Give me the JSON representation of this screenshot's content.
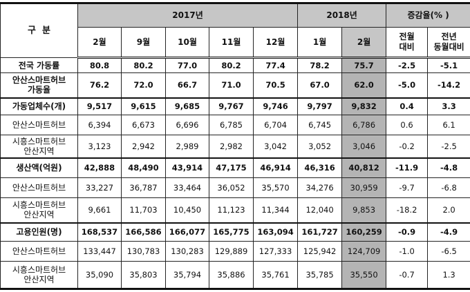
{
  "header": {
    "category": "구  분",
    "year2017": "2017년",
    "year2018": "2018년",
    "change": "증감율(% )",
    "months": [
      "2월",
      "9월",
      "10월",
      "11월",
      "12월",
      "1월",
      "2월"
    ],
    "change_cols": [
      [
        "전월",
        "대비"
      ],
      [
        "전년",
        "동월대비"
      ]
    ]
  },
  "rows": [
    {
      "label": [
        "전국 가동률"
      ],
      "values": [
        "80.8",
        "80.2",
        "77.0",
        "80.2",
        "77.4",
        "78.2",
        "75.7",
        "-2.5",
        "-5.1"
      ]
    },
    {
      "label": [
        "안산스마트허브",
        "가동율"
      ],
      "values": [
        "76.2",
        "72.0",
        "66.7",
        "71.0",
        "70.5",
        "67.0",
        "62.0",
        "-5.0",
        "-14.2"
      ]
    },
    {
      "label": [
        "가동업체수(개)"
      ],
      "values": [
        "9,517",
        "9,615",
        "9,685",
        "9,767",
        "9,746",
        "9,797",
        "9,832",
        "0.4",
        "3.3"
      ]
    },
    {
      "label": [
        "안산스마트허브"
      ],
      "values": [
        "6,394",
        "6,673",
        "6,696",
        "6,785",
        "6,704",
        "6,745",
        "6,786",
        "0.6",
        "6.1"
      ]
    },
    {
      "label": [
        "시흥스마트허브",
        "안산지역"
      ],
      "values": [
        "3,123",
        "2,942",
        "2,989",
        "2,982",
        "3,042",
        "3,052",
        "3,046",
        "-0.2",
        "-2.5"
      ]
    },
    {
      "label": [
        "생산액(억원)"
      ],
      "values": [
        "42,888",
        "48,490",
        "43,914",
        "47,175",
        "46,914",
        "46,316",
        "40,812",
        "-11.9",
        "-4.8"
      ]
    },
    {
      "label": [
        "안산스마트허브"
      ],
      "values": [
        "33,227",
        "36,787",
        "33,464",
        "36,052",
        "35,570",
        "34,276",
        "30,959",
        "-9.7",
        "-6.8"
      ]
    },
    {
      "label": [
        "시흥스마트허브",
        "안산지역"
      ],
      "values": [
        "9,661",
        "11,703",
        "10,450",
        "11,123",
        "11,344",
        "12,040",
        "9,853",
        "-18.2",
        "2.0"
      ]
    },
    {
      "label": [
        "고용인원(명)"
      ],
      "values": [
        "168,537",
        "166,586",
        "166,077",
        "165,775",
        "163,094",
        "161,727",
        "160,259",
        "-0.9",
        "-4.9"
      ]
    },
    {
      "label": [
        "안산스마트허브"
      ],
      "values": [
        "133,447",
        "130,783",
        "130,283",
        "129,889",
        "127,333",
        "125,942",
        "124,709",
        "-1.0",
        "-6.5"
      ]
    },
    {
      "label": [
        "시흥스마트허브",
        "안산지역"
      ],
      "values": [
        "35,090",
        "35,803",
        "35,794",
        "35,886",
        "35,761",
        "35,785",
        "35,550",
        "-0.7",
        "1.3"
      ]
    }
  ]
}
